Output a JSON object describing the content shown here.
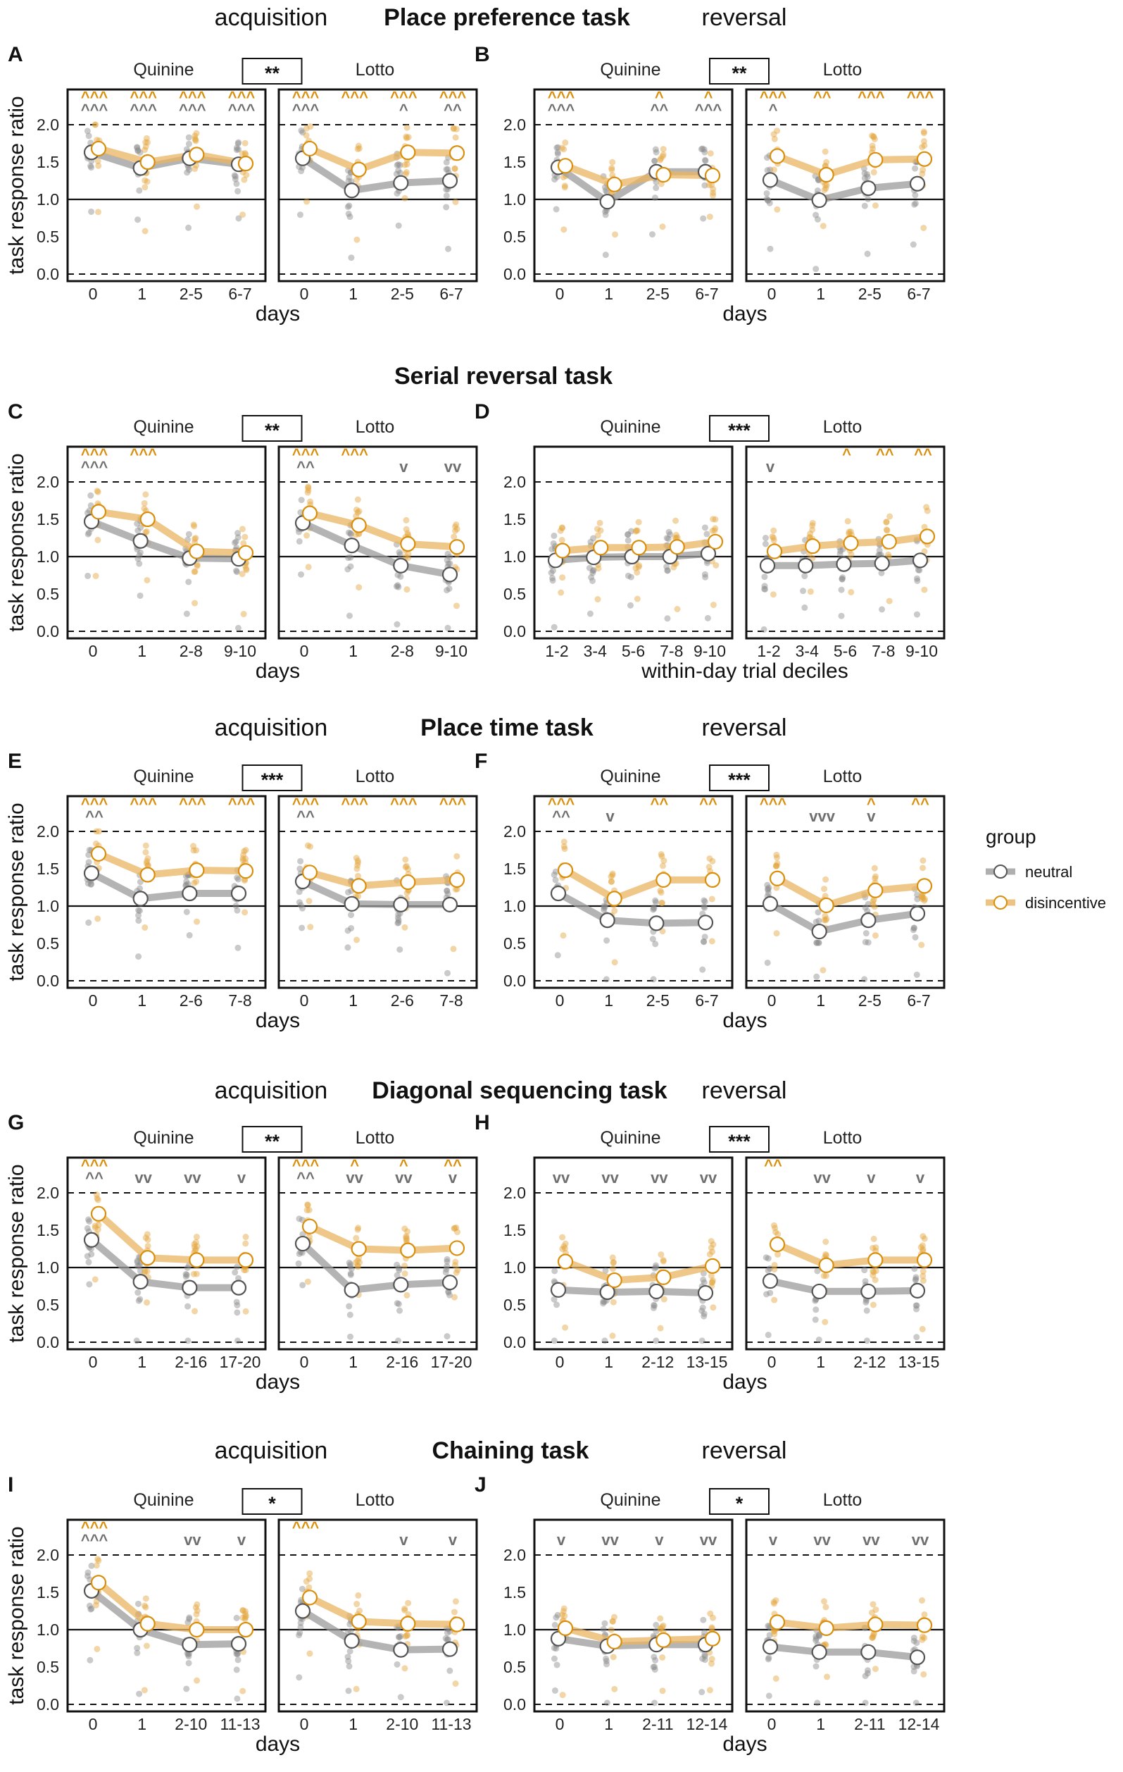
{
  "colors": {
    "neutral": "#9b9b9b",
    "neutral_point": "#8a8a8a",
    "disincentive": "#e8b461",
    "disincentive_point": "#e3a43c",
    "marker_neutral": "#6f6f6f",
    "marker_disincentive": "#d98f0c"
  },
  "chart_data": {
    "type": "line",
    "ylabel": "task response ratio",
    "ylim": [
      -0.05,
      2.5
    ],
    "yticks": [
      "0.0",
      "0.5",
      "1.0",
      "1.5",
      "2.0"
    ],
    "dashed_lines_at": [
      0,
      2
    ],
    "solid_line_at": 1,
    "sides": [
      "Quinine",
      "Lotto"
    ],
    "legend": {
      "title": "group",
      "entries": [
        {
          "key": "neutral",
          "label": "neutral"
        },
        {
          "key": "disincentive",
          "label": "disincentive"
        }
      ]
    },
    "section_titles": [
      {
        "text": "Place preference task",
        "row": 0
      },
      {
        "text": "Serial reversal task",
        "row": 1
      },
      {
        "text": "Place time task",
        "row": 2
      },
      {
        "text": "Diagonal sequencing task",
        "row": 3
      },
      {
        "text": "Chaining task",
        "row": 4
      }
    ],
    "phase_titles": [
      {
        "text": "acquisition",
        "row": 0,
        "col": 0
      },
      {
        "text": "reversal",
        "row": 0,
        "col": 1
      },
      {
        "text": "acquisition",
        "row": 2,
        "col": 0
      },
      {
        "text": "reversal",
        "row": 2,
        "col": 1
      },
      {
        "text": "acquisition",
        "row": 3,
        "col": 0
      },
      {
        "text": "reversal",
        "row": 3,
        "col": 1
      },
      {
        "text": "acquisition",
        "row": 4,
        "col": 0
      },
      {
        "text": "reversal",
        "row": 4,
        "col": 1
      }
    ],
    "panels": [
      {
        "id": "A",
        "row": 0,
        "col": 0,
        "sig": "**",
        "xlabel": "days",
        "categories": [
          "0",
          "1",
          "2-5",
          "6-7"
        ],
        "quinine": {
          "neutral": [
            1.63,
            1.42,
            1.55,
            1.47
          ],
          "disincentive": [
            1.68,
            1.5,
            1.6,
            1.48
          ]
        },
        "lotto": {
          "neutral": [
            1.55,
            1.12,
            1.22,
            1.25
          ],
          "disincentive": [
            1.68,
            1.4,
            1.63,
            1.62
          ]
        },
        "markers": {
          "quinine": {
            "neutral": [
              "^^^",
              "^^^",
              "^^^",
              "^^^"
            ],
            "disincentive": [
              "^^^",
              "^^^",
              "^^^",
              "^^^"
            ]
          },
          "lotto": {
            "neutral": [
              "^^^",
              "",
              "^",
              "^^"
            ],
            "disincentive": [
              "^^^",
              "^^^",
              "^^^",
              "^^^"
            ]
          }
        }
      },
      {
        "id": "B",
        "row": 0,
        "col": 1,
        "sig": "**",
        "xlabel": "days",
        "categories": [
          "0",
          "1",
          "2-5",
          "6-7"
        ],
        "quinine": {
          "neutral": [
            1.43,
            0.97,
            1.37,
            1.37
          ],
          "disincentive": [
            1.45,
            1.2,
            1.33,
            1.32
          ]
        },
        "lotto": {
          "neutral": [
            1.26,
            0.99,
            1.15,
            1.21
          ],
          "disincentive": [
            1.58,
            1.33,
            1.53,
            1.54
          ]
        },
        "markers": {
          "quinine": {
            "neutral": [
              "^^^",
              "",
              "^^",
              "^^^"
            ],
            "disincentive": [
              "^^^",
              "",
              "^",
              "^"
            ]
          },
          "lotto": {
            "neutral": [
              "^",
              "",
              "",
              ""
            ],
            "disincentive": [
              "^^^",
              "^^",
              "^^^",
              "^^^"
            ]
          }
        }
      },
      {
        "id": "C",
        "row": 1,
        "col": 0,
        "sig": "**",
        "xlabel": "days",
        "categories": [
          "0",
          "1",
          "2-8",
          "9-10"
        ],
        "quinine": {
          "neutral": [
            1.47,
            1.21,
            0.98,
            0.97
          ],
          "disincentive": [
            1.6,
            1.5,
            1.07,
            1.05
          ]
        },
        "lotto": {
          "neutral": [
            1.45,
            1.15,
            0.88,
            0.76
          ],
          "disincentive": [
            1.58,
            1.42,
            1.17,
            1.13
          ]
        },
        "markers": {
          "quinine": {
            "neutral": [
              "^^^",
              "",
              "",
              ""
            ],
            "disincentive": [
              "^^^",
              "^^^",
              "",
              ""
            ]
          },
          "lotto": {
            "neutral": [
              "^^",
              "",
              "v",
              "vv"
            ],
            "disincentive": [
              "^^^",
              "^^^",
              "",
              ""
            ]
          }
        }
      },
      {
        "id": "D",
        "row": 1,
        "col": 1,
        "sig": "***",
        "xlabel": "within-day trial deciles",
        "categories": [
          "1-2",
          "3-4",
          "5-6",
          "7-8",
          "9-10"
        ],
        "quinine": {
          "neutral": [
            0.95,
            0.99,
            1.0,
            1.0,
            1.04
          ],
          "disincentive": [
            1.08,
            1.12,
            1.12,
            1.13,
            1.2
          ]
        },
        "lotto": {
          "neutral": [
            0.88,
            0.88,
            0.9,
            0.91,
            0.95
          ],
          "disincentive": [
            1.07,
            1.14,
            1.18,
            1.2,
            1.27
          ]
        },
        "markers": {
          "quinine": {
            "neutral": [
              "",
              "",
              "",
              "",
              ""
            ],
            "disincentive": [
              "",
              "",
              "",
              "",
              ""
            ]
          },
          "lotto": {
            "neutral": [
              "v",
              "",
              "",
              "",
              ""
            ],
            "disincentive": [
              "",
              "",
              "^",
              "^^",
              "^^"
            ]
          }
        }
      },
      {
        "id": "E",
        "row": 2,
        "col": 0,
        "sig": "***",
        "xlabel": "days",
        "categories": [
          "0",
          "1",
          "2-6",
          "7-8"
        ],
        "quinine": {
          "neutral": [
            1.44,
            1.1,
            1.17,
            1.17
          ],
          "disincentive": [
            1.7,
            1.42,
            1.48,
            1.47
          ]
        },
        "lotto": {
          "neutral": [
            1.33,
            1.03,
            1.02,
            1.02
          ],
          "disincentive": [
            1.45,
            1.27,
            1.32,
            1.35
          ]
        },
        "markers": {
          "quinine": {
            "neutral": [
              "^^",
              "",
              "",
              ""
            ],
            "disincentive": [
              "^^^",
              "^^^",
              "^^^",
              "^^^"
            ]
          },
          "lotto": {
            "neutral": [
              "^^",
              "",
              "",
              ""
            ],
            "disincentive": [
              "^^^",
              "^^^",
              "^^^",
              "^^^"
            ]
          }
        }
      },
      {
        "id": "F",
        "row": 2,
        "col": 1,
        "sig": "***",
        "xlabel": "days",
        "categories": [
          "0",
          "1",
          "2-5",
          "6-7"
        ],
        "quinine": {
          "neutral": [
            1.17,
            0.81,
            0.77,
            0.78
          ],
          "disincentive": [
            1.48,
            1.1,
            1.35,
            1.35
          ]
        },
        "lotto": {
          "neutral": [
            1.03,
            0.66,
            0.81,
            0.9
          ],
          "disincentive": [
            1.37,
            1.01,
            1.21,
            1.27
          ]
        },
        "markers": {
          "quinine": {
            "neutral": [
              "^^",
              "v",
              "",
              ""
            ],
            "disincentive": [
              "^^^",
              "",
              "^^",
              "^^"
            ]
          },
          "lotto": {
            "neutral": [
              "",
              "vvv",
              "v",
              ""
            ],
            "disincentive": [
              "^^^",
              "",
              "^",
              "^^"
            ]
          }
        }
      },
      {
        "id": "G",
        "row": 3,
        "col": 0,
        "sig": "**",
        "xlabel": "days",
        "categories": [
          "0",
          "1",
          "2-16",
          "17-20"
        ],
        "quinine": {
          "neutral": [
            1.37,
            0.81,
            0.73,
            0.73
          ],
          "disincentive": [
            1.72,
            1.13,
            1.1,
            1.1
          ]
        },
        "lotto": {
          "neutral": [
            1.32,
            0.7,
            0.77,
            0.8
          ],
          "disincentive": [
            1.55,
            1.25,
            1.23,
            1.26
          ]
        },
        "markers": {
          "quinine": {
            "neutral": [
              "^^",
              "vv",
              "vv",
              "v"
            ],
            "disincentive": [
              "^^^",
              "",
              "",
              ""
            ]
          },
          "lotto": {
            "neutral": [
              "^^",
              "vv",
              "vv",
              "v"
            ],
            "disincentive": [
              "^^^",
              "^",
              "^",
              "^^"
            ]
          }
        }
      },
      {
        "id": "H",
        "row": 3,
        "col": 1,
        "sig": "***",
        "xlabel": "days",
        "categories": [
          "0",
          "1",
          "2-12",
          "13-15"
        ],
        "quinine": {
          "neutral": [
            0.7,
            0.67,
            0.68,
            0.66
          ],
          "disincentive": [
            1.08,
            0.83,
            0.87,
            1.02
          ]
        },
        "lotto": {
          "neutral": [
            0.82,
            0.68,
            0.68,
            0.69
          ],
          "disincentive": [
            1.31,
            1.03,
            1.1,
            1.1
          ]
        },
        "markers": {
          "quinine": {
            "neutral": [
              "vv",
              "vv",
              "vv",
              "vv"
            ],
            "disincentive": [
              "",
              "",
              "",
              ""
            ]
          },
          "lotto": {
            "neutral": [
              "",
              "vv",
              "v",
              "v"
            ],
            "disincentive": [
              "^^",
              "",
              "",
              ""
            ]
          }
        }
      },
      {
        "id": "I",
        "row": 4,
        "col": 0,
        "sig": "*",
        "xlabel": "days",
        "categories": [
          "0",
          "1",
          "2-10",
          "11-13"
        ],
        "quinine": {
          "neutral": [
            1.52,
            1.0,
            0.8,
            0.81
          ],
          "disincentive": [
            1.63,
            1.08,
            1.0,
            1.0
          ]
        },
        "lotto": {
          "neutral": [
            1.25,
            0.85,
            0.73,
            0.74
          ],
          "disincentive": [
            1.43,
            1.11,
            1.08,
            1.07
          ]
        },
        "markers": {
          "quinine": {
            "neutral": [
              "^^^",
              "",
              "vv",
              "v"
            ],
            "disincentive": [
              "^^^",
              "",
              "",
              ""
            ]
          },
          "lotto": {
            "neutral": [
              "",
              "",
              "v",
              "v"
            ],
            "disincentive": [
              "^^^",
              "",
              "",
              ""
            ]
          }
        }
      },
      {
        "id": "J",
        "row": 4,
        "col": 1,
        "sig": "*",
        "xlabel": "days",
        "categories": [
          "0",
          "1",
          "2-11",
          "12-14"
        ],
        "quinine": {
          "neutral": [
            0.88,
            0.78,
            0.8,
            0.8
          ],
          "disincentive": [
            1.02,
            0.84,
            0.86,
            0.88
          ]
        },
        "lotto": {
          "neutral": [
            0.77,
            0.7,
            0.7,
            0.63
          ],
          "disincentive": [
            1.1,
            1.02,
            1.07,
            1.06
          ]
        },
        "markers": {
          "quinine": {
            "neutral": [
              "v",
              "vv",
              "v",
              "vv"
            ],
            "disincentive": [
              "",
              "",
              "",
              ""
            ]
          },
          "lotto": {
            "neutral": [
              "v",
              "vv",
              "vv",
              "vv"
            ],
            "disincentive": [
              "",
              "",
              "",
              ""
            ]
          }
        }
      }
    ]
  }
}
